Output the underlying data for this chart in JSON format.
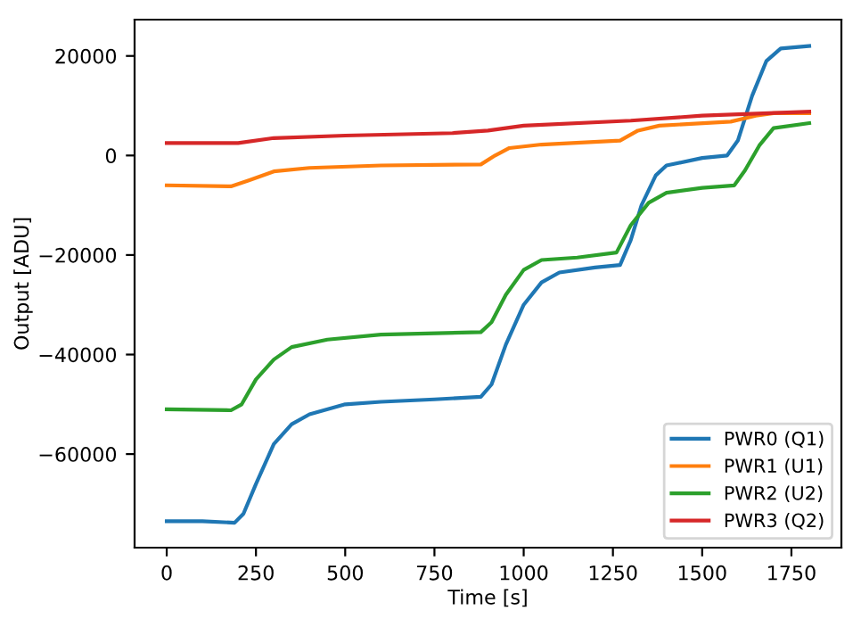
{
  "chart_data": {
    "type": "line",
    "xlabel": "Time [s]",
    "ylabel": "Output [ADU]",
    "xlim": [
      -90,
      1890
    ],
    "xticks": [
      0,
      250,
      500,
      750,
      1000,
      1250,
      1500,
      1750
    ],
    "ylim": [
      -78800,
      27300
    ],
    "yticks": [
      -60000,
      -40000,
      -20000,
      0,
      20000
    ],
    "grid": false,
    "legend": "bottom right",
    "marker": "none",
    "line_style": "solid",
    "series": [
      {
        "name": "PWR0 (Q1)",
        "color": "#1f77b4",
        "x": [
          0,
          100,
          190,
          215,
          250,
          300,
          350,
          400,
          500,
          600,
          750,
          880,
          910,
          950,
          1000,
          1050,
          1100,
          1200,
          1270,
          1300,
          1330,
          1370,
          1400,
          1500,
          1570,
          1600,
          1640,
          1680,
          1720,
          1800
        ],
        "values": [
          -73500,
          -73500,
          -73800,
          -72000,
          -66000,
          -58000,
          -54000,
          -52000,
          -50000,
          -49500,
          -49000,
          -48500,
          -46000,
          -38000,
          -30000,
          -25500,
          -23500,
          -22500,
          -22000,
          -17000,
          -10000,
          -4000,
          -2000,
          -500,
          0,
          3000,
          12000,
          19000,
          21500,
          22000
        ]
      },
      {
        "name": "PWR1 (U1)",
        "color": "#ff7f0e",
        "x": [
          0,
          180,
          230,
          300,
          400,
          600,
          880,
          920,
          960,
          1050,
          1270,
          1320,
          1380,
          1580,
          1650,
          1700,
          1800
        ],
        "values": [
          -6000,
          -6200,
          -5000,
          -3200,
          -2500,
          -2000,
          -1800,
          0,
          1500,
          2200,
          3000,
          5000,
          6000,
          6800,
          8000,
          8500,
          8500
        ]
      },
      {
        "name": "PWR2 (U2)",
        "color": "#2ca02c",
        "x": [
          0,
          180,
          210,
          250,
          300,
          350,
          450,
          600,
          880,
          910,
          950,
          1000,
          1050,
          1150,
          1260,
          1300,
          1350,
          1400,
          1500,
          1590,
          1620,
          1660,
          1700,
          1800
        ],
        "values": [
          -51000,
          -51200,
          -50000,
          -45000,
          -41000,
          -38500,
          -37000,
          -36000,
          -35500,
          -33500,
          -28000,
          -23000,
          -21000,
          -20500,
          -19500,
          -14000,
          -9500,
          -7500,
          -6500,
          -6000,
          -3000,
          2000,
          5500,
          6500
        ]
      },
      {
        "name": "PWR3 (Q2)",
        "color": "#d62728",
        "x": [
          0,
          200,
          300,
          500,
          800,
          900,
          1000,
          1300,
          1500,
          1800
        ],
        "values": [
          2500,
          2500,
          3500,
          4000,
          4500,
          5000,
          6000,
          7000,
          8000,
          8800
        ]
      }
    ]
  }
}
